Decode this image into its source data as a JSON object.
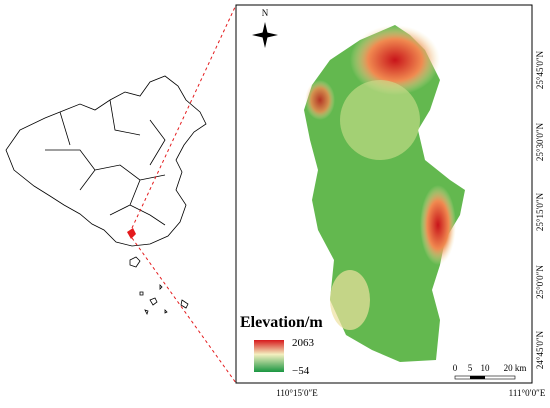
{
  "north_arrow": "N",
  "legend": {
    "title": "Elevation/m",
    "high": "2063",
    "low": "−54"
  },
  "scale_bar": {
    "labels": [
      "0",
      "5",
      "10",
      "20 km"
    ]
  },
  "latitude_labels": [
    "25°45′0″N",
    "25°30′0″N",
    "25°15′0″N",
    "25°0′0″N",
    "24°45′0″N"
  ],
  "longitude_labels": [
    "110°15′0″E",
    "111°0′0″E"
  ]
}
